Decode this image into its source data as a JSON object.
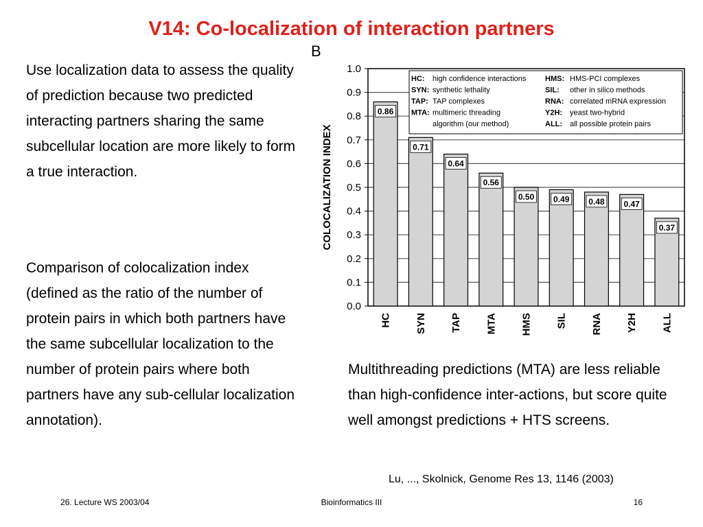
{
  "slide": {
    "title": "V14: Co-localization of interaction partners",
    "para1": "Use localization data to assess the quality of prediction because two predicted interacting partners sharing the same subcellular location are more likely to form a true interaction.",
    "para2": "Comparison of colocalization index (defined as the ratio of the number of protein pairs in which both partners have the same subcellular localization to the number of protein pairs where both partners have any sub-cellular localization annotation).",
    "caption": "Multithreading predictions (MTA) are less reliable than high-confidence inter-actions, but score quite well amongst predictions + HTS screens.",
    "citation": "Lu, ..., Skolnick, Genome Res 13, 1146 (2003)",
    "footer_left": "26. Lecture WS 2003/04",
    "footer_center": "Bioinformatics III",
    "footer_right": "16"
  },
  "chart_data": {
    "type": "bar",
    "panel_label": "B",
    "ylabel": "COLOCALIZATION INDEX",
    "xlabel": "",
    "categories": [
      "HC",
      "SYN",
      "TAP",
      "MTA",
      "HMS",
      "SIL",
      "RNA",
      "Y2H",
      "ALL"
    ],
    "values": [
      0.86,
      0.71,
      0.64,
      0.56,
      0.5,
      0.49,
      0.48,
      0.47,
      0.37
    ],
    "value_labels": [
      "0.86",
      "0.71",
      "0.64",
      "0.56",
      "0.50",
      "0.49",
      "0.48",
      "0.47",
      "0.37"
    ],
    "ylim": [
      0.0,
      1.0
    ],
    "yticks": [
      "0.0",
      "0.1",
      "0.2",
      "0.3",
      "0.4",
      "0.5",
      "0.6",
      "0.7",
      "0.8",
      "0.9",
      "1.0"
    ],
    "grid": "horizontal",
    "bar_color": "#d4d4d4",
    "legend_position": "top-right",
    "legend_left": [
      {
        "key": "HC:",
        "text": "high confidence interactions"
      },
      {
        "key": "SYN:",
        "text": "synthetic lethality"
      },
      {
        "key": "TAP:",
        "text": "TAP complexes"
      },
      {
        "key": "MTA:",
        "text": "multimeric threading"
      },
      {
        "key": "",
        "text": "algorithm (our method)"
      }
    ],
    "legend_right": [
      {
        "key": "HMS:",
        "text": "HMS-PCI complexes"
      },
      {
        "key": "SIL:",
        "text": "other in silico methods"
      },
      {
        "key": "RNA:",
        "text": "correlated mRNA expression"
      },
      {
        "key": "Y2H:",
        "text": "yeast two-hybrid"
      },
      {
        "key": "ALL:",
        "text": "all possible protein pairs"
      }
    ]
  }
}
